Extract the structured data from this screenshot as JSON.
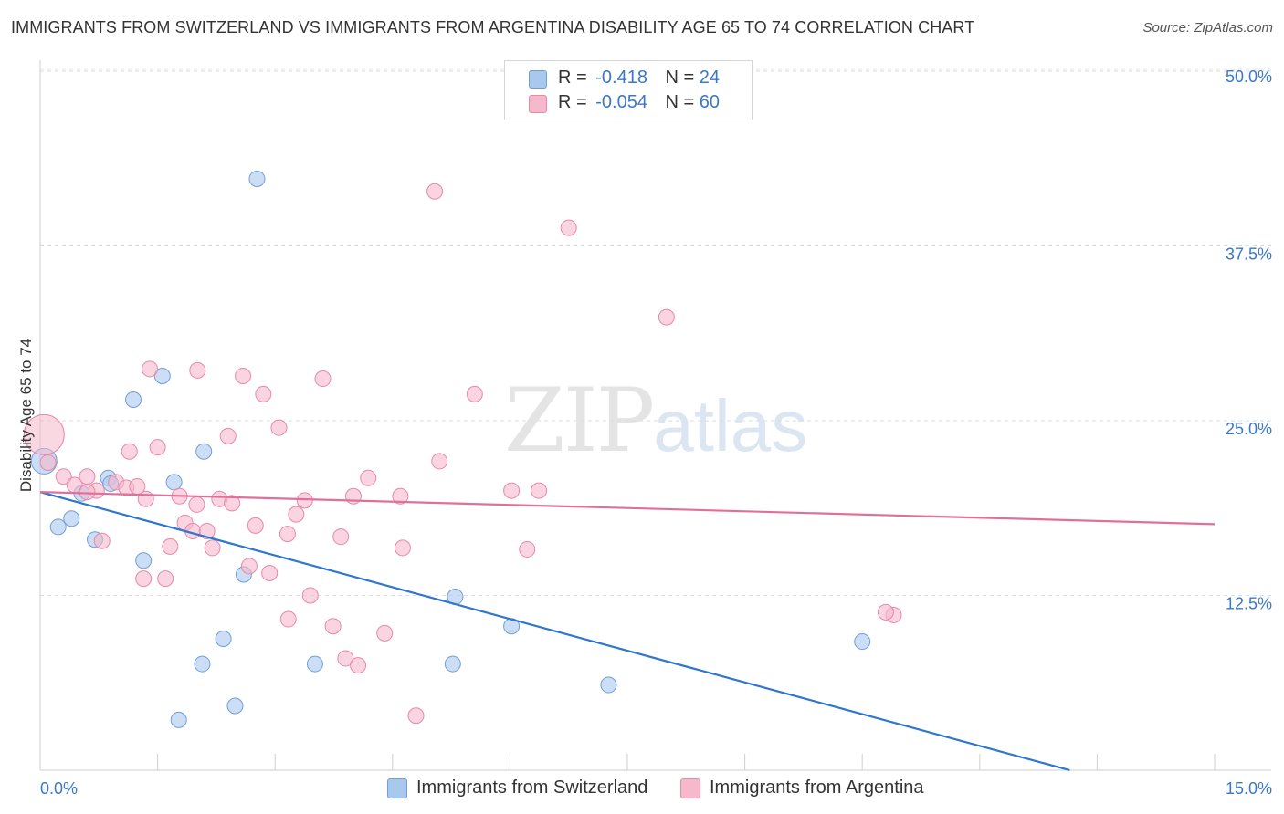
{
  "header": {
    "title": "IMMIGRANTS FROM SWITZERLAND VS IMMIGRANTS FROM ARGENTINA DISABILITY AGE 65 TO 74 CORRELATION CHART",
    "source": "Source: ZipAtlas.com"
  },
  "watermark": {
    "zip": "ZIP",
    "atlas": "atlas"
  },
  "legend": {
    "rows": [
      {
        "r_label": "R =",
        "r_value": "-0.418",
        "n_label": "N =",
        "n_value": "24"
      },
      {
        "r_label": "R =",
        "r_value": "-0.054",
        "n_label": "N =",
        "n_value": "60"
      }
    ]
  },
  "chart_data": {
    "type": "scatter",
    "title": "IMMIGRANTS FROM SWITZERLAND VS IMMIGRANTS FROM ARGENTINA DISABILITY AGE 65 TO 74 CORRELATION CHART",
    "xlabel": "",
    "ylabel": "Disability Age 65 to 74",
    "xlim": [
      0,
      15
    ],
    "ylim": [
      0,
      52
    ],
    "x_tick_labels": [
      "0.0%",
      "15.0%"
    ],
    "y_ticks": [
      12.5,
      25.0,
      37.5,
      50.0
    ],
    "y_tick_labels": [
      "12.5%",
      "25.0%",
      "37.5%",
      "50.0%"
    ],
    "grid": true,
    "legend_position": "bottom",
    "colors": {
      "switzerland_fill": "#a8c8ee",
      "switzerland_stroke": "#6f9fd8",
      "switzerland_line": "#2f76cf",
      "argentina_fill": "#f6b8cb",
      "argentina_stroke": "#e889a8",
      "argentina_line": "#e0709a",
      "tick_label": "#3a78c9"
    },
    "series": [
      {
        "name": "Immigrants from Switzerland",
        "trend": {
          "x": [
            0.0,
            15.0
          ],
          "y": [
            19.9,
            -2.8
          ]
        },
        "points": [
          {
            "x": 0.05,
            "y": 22.1
          },
          {
            "x": 0.23,
            "y": 17.4
          },
          {
            "x": 0.4,
            "y": 18.0
          },
          {
            "x": 0.53,
            "y": 19.8
          },
          {
            "x": 0.7,
            "y": 16.5
          },
          {
            "x": 0.87,
            "y": 20.9
          },
          {
            "x": 0.9,
            "y": 20.5
          },
          {
            "x": 1.19,
            "y": 26.5
          },
          {
            "x": 1.32,
            "y": 15.0
          },
          {
            "x": 1.56,
            "y": 28.2
          },
          {
            "x": 1.71,
            "y": 20.6
          },
          {
            "x": 2.09,
            "y": 22.8
          },
          {
            "x": 2.77,
            "y": 42.3
          },
          {
            "x": 2.6,
            "y": 14.0
          },
          {
            "x": 2.34,
            "y": 9.4
          },
          {
            "x": 2.07,
            "y": 7.6
          },
          {
            "x": 1.77,
            "y": 3.6
          },
          {
            "x": 2.49,
            "y": 4.6
          },
          {
            "x": 3.51,
            "y": 7.6
          },
          {
            "x": 5.27,
            "y": 7.6
          },
          {
            "x": 5.3,
            "y": 12.4
          },
          {
            "x": 6.02,
            "y": 10.3
          },
          {
            "x": 7.26,
            "y": 6.1
          },
          {
            "x": 10.5,
            "y": 9.2
          }
        ]
      },
      {
        "name": "Immigrants from Argentina",
        "trend": {
          "x": [
            0.0,
            15.0
          ],
          "y": [
            19.9,
            17.6
          ]
        },
        "points": [
          {
            "x": 0.05,
            "y": 24.0
          },
          {
            "x": 0.1,
            "y": 22.0
          },
          {
            "x": 0.3,
            "y": 21.0
          },
          {
            "x": 0.44,
            "y": 20.4
          },
          {
            "x": 0.6,
            "y": 21.0
          },
          {
            "x": 0.72,
            "y": 20.0
          },
          {
            "x": 0.79,
            "y": 16.4
          },
          {
            "x": 0.97,
            "y": 20.6
          },
          {
            "x": 1.1,
            "y": 20.2
          },
          {
            "x": 1.14,
            "y": 22.8
          },
          {
            "x": 1.24,
            "y": 20.3
          },
          {
            "x": 1.32,
            "y": 13.7
          },
          {
            "x": 1.4,
            "y": 28.7
          },
          {
            "x": 1.5,
            "y": 23.1
          },
          {
            "x": 1.6,
            "y": 13.7
          },
          {
            "x": 1.66,
            "y": 16.0
          },
          {
            "x": 1.78,
            "y": 19.6
          },
          {
            "x": 1.85,
            "y": 17.7
          },
          {
            "x": 1.95,
            "y": 17.1
          },
          {
            "x": 2.01,
            "y": 28.6
          },
          {
            "x": 2.13,
            "y": 17.1
          },
          {
            "x": 2.2,
            "y": 15.9
          },
          {
            "x": 2.29,
            "y": 19.4
          },
          {
            "x": 2.4,
            "y": 23.9
          },
          {
            "x": 2.45,
            "y": 19.1
          },
          {
            "x": 2.59,
            "y": 28.2
          },
          {
            "x": 2.67,
            "y": 14.6
          },
          {
            "x": 2.75,
            "y": 17.5
          },
          {
            "x": 2.85,
            "y": 26.9
          },
          {
            "x": 2.93,
            "y": 14.1
          },
          {
            "x": 3.05,
            "y": 24.5
          },
          {
            "x": 3.16,
            "y": 16.9
          },
          {
            "x": 3.17,
            "y": 10.8
          },
          {
            "x": 3.27,
            "y": 18.3
          },
          {
            "x": 3.38,
            "y": 19.3
          },
          {
            "x": 3.45,
            "y": 12.5
          },
          {
            "x": 3.61,
            "y": 28.0
          },
          {
            "x": 3.74,
            "y": 10.3
          },
          {
            "x": 3.84,
            "y": 16.7
          },
          {
            "x": 3.9,
            "y": 8.0
          },
          {
            "x": 4.0,
            "y": 19.6
          },
          {
            "x": 4.06,
            "y": 7.5
          },
          {
            "x": 4.19,
            "y": 20.9
          },
          {
            "x": 4.4,
            "y": 9.8
          },
          {
            "x": 4.6,
            "y": 19.6
          },
          {
            "x": 4.63,
            "y": 15.9
          },
          {
            "x": 4.8,
            "y": 3.9
          },
          {
            "x": 5.04,
            "y": 41.4
          },
          {
            "x": 5.1,
            "y": 22.1
          },
          {
            "x": 5.55,
            "y": 26.9
          },
          {
            "x": 6.02,
            "y": 20.0
          },
          {
            "x": 6.22,
            "y": 15.8
          },
          {
            "x": 6.37,
            "y": 20.0
          },
          {
            "x": 6.75,
            "y": 38.8
          },
          {
            "x": 8.0,
            "y": 32.4
          },
          {
            "x": 10.9,
            "y": 11.1
          },
          {
            "x": 10.8,
            "y": 11.3
          },
          {
            "x": 1.35,
            "y": 19.4
          },
          {
            "x": 2.0,
            "y": 19.0
          },
          {
            "x": 0.6,
            "y": 19.9
          }
        ]
      }
    ]
  }
}
